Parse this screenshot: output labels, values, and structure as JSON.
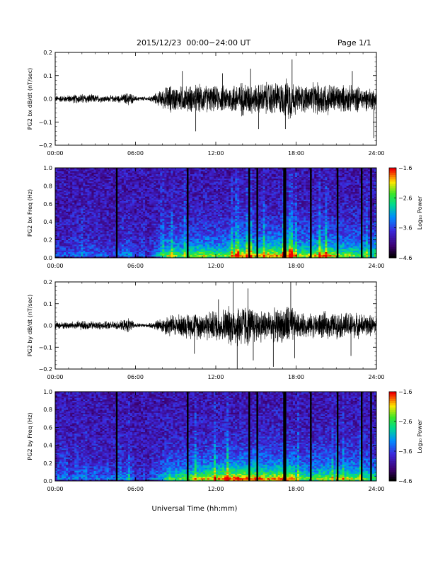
{
  "header": {
    "title": "2015/12/23  00:00−24:00 UT",
    "page": "Page 1/1"
  },
  "xaxis_label": "Universal Time (hh:mm)",
  "chart_data": [
    {
      "type": "line",
      "ylabel": "PG2 bx dB/dt (nT/sec)",
      "xlim": [
        0,
        24
      ],
      "ylim": [
        -0.2,
        0.2
      ],
      "x_ticks": [
        "00:00",
        "06:00",
        "12:00",
        "18:00",
        "24:00"
      ],
      "y_ticks": [
        "−0.2",
        "−0.1",
        "0.0",
        "0.1",
        "0.2"
      ],
      "y_tick_values": [
        -0.2,
        -0.1,
        0.0,
        0.1,
        0.2
      ],
      "envelope": {
        "hours": [
          0,
          1,
          2,
          3,
          4,
          5,
          5.5,
          6,
          7,
          8,
          8.5,
          9,
          10,
          11,
          12,
          13,
          14,
          15,
          16,
          17,
          17.5,
          18,
          19,
          20,
          21,
          22,
          23,
          24
        ],
        "amplitude": [
          0.015,
          0.018,
          0.025,
          0.02,
          0.015,
          0.02,
          0.035,
          0.012,
          0.01,
          0.045,
          0.07,
          0.06,
          0.065,
          0.07,
          0.06,
          0.07,
          0.085,
          0.07,
          0.085,
          0.08,
          0.11,
          0.07,
          0.07,
          0.085,
          0.07,
          0.065,
          0.06,
          0.05
        ]
      },
      "spikes": [
        [
          9.5,
          0.12
        ],
        [
          10.5,
          -0.14
        ],
        [
          12.5,
          0.11
        ],
        [
          14.6,
          0.13
        ],
        [
          15.2,
          -0.13
        ],
        [
          17.2,
          -0.13
        ],
        [
          17.7,
          0.17
        ],
        [
          22.2,
          0.12
        ],
        [
          23.8,
          -0.17
        ]
      ]
    },
    {
      "type": "heatmap",
      "ylabel": "PG2 bx Freq (Hz)",
      "colorbar_label": "Log₁₀ Power",
      "xlim": [
        0,
        24
      ],
      "ylim": [
        0,
        1.0
      ],
      "x_ticks": [
        "00:00",
        "06:00",
        "12:00",
        "18:00",
        "24:00"
      ],
      "y_ticks": [
        "0.0",
        "0.2",
        "0.4",
        "0.6",
        "0.8",
        "1.0"
      ],
      "y_tick_values": [
        0,
        0.2,
        0.4,
        0.6,
        0.8,
        1.0
      ],
      "colorbar_ticks": [
        "−1.6",
        "−2.6",
        "−3.6",
        "−4.6"
      ],
      "colorbar_range": [
        -4.6,
        -1.6
      ],
      "data_gaps_hours": [
        4.6,
        9.9,
        14.5,
        15.1,
        17.1,
        17.2,
        19.1,
        21.1,
        22.9,
        23.6
      ]
    },
    {
      "type": "line",
      "ylabel": "PG2 by dB/dt (nT/sec)",
      "xlim": [
        0,
        24
      ],
      "ylim": [
        -0.2,
        0.2
      ],
      "x_ticks": [
        "00:00",
        "06:00",
        "12:00",
        "18:00",
        "24:00"
      ],
      "y_ticks": [
        "−0.2",
        "−0.1",
        "0.0",
        "0.1",
        "0.2"
      ],
      "y_tick_values": [
        -0.2,
        -0.1,
        0.0,
        0.1,
        0.2
      ],
      "envelope": {
        "hours": [
          0,
          1,
          2,
          3,
          4,
          5,
          5.5,
          6,
          7,
          8,
          8.5,
          9,
          10,
          11,
          12,
          13,
          14,
          15,
          16,
          17,
          17.5,
          18,
          19,
          20,
          21,
          22,
          23,
          24
        ],
        "amplitude": [
          0.018,
          0.02,
          0.025,
          0.022,
          0.02,
          0.025,
          0.04,
          0.012,
          0.01,
          0.04,
          0.06,
          0.055,
          0.065,
          0.075,
          0.08,
          0.1,
          0.12,
          0.09,
          0.08,
          0.09,
          0.12,
          0.065,
          0.06,
          0.07,
          0.065,
          0.07,
          0.06,
          0.05
        ]
      },
      "spikes": [
        [
          10.4,
          -0.13
        ],
        [
          12.2,
          0.12
        ],
        [
          13.3,
          0.2
        ],
        [
          13.6,
          -0.2
        ],
        [
          14.4,
          0.17
        ],
        [
          14.8,
          -0.16
        ],
        [
          16.3,
          -0.19
        ],
        [
          17.6,
          0.2
        ],
        [
          17.9,
          -0.15
        ],
        [
          22.1,
          -0.14
        ]
      ]
    },
    {
      "type": "heatmap",
      "ylabel": "PG2 by Freq (Hz)",
      "colorbar_label": "Log₁₀ Power",
      "xlim": [
        0,
        24
      ],
      "ylim": [
        0,
        1.0
      ],
      "x_ticks": [
        "00:00",
        "06:00",
        "12:00",
        "18:00",
        "24:00"
      ],
      "y_ticks": [
        "0.0",
        "0.2",
        "0.4",
        "0.6",
        "0.8",
        "1.0"
      ],
      "y_tick_values": [
        0,
        0.2,
        0.4,
        0.6,
        0.8,
        1.0
      ],
      "colorbar_ticks": [
        "−1.6",
        "−2.6",
        "−3.6",
        "−4.6"
      ],
      "colorbar_range": [
        -4.6,
        -1.6
      ],
      "data_gaps_hours": [
        4.6,
        9.9,
        14.5,
        15.1,
        17.1,
        17.2,
        19.1,
        21.1,
        22.9,
        23.6
      ]
    }
  ]
}
